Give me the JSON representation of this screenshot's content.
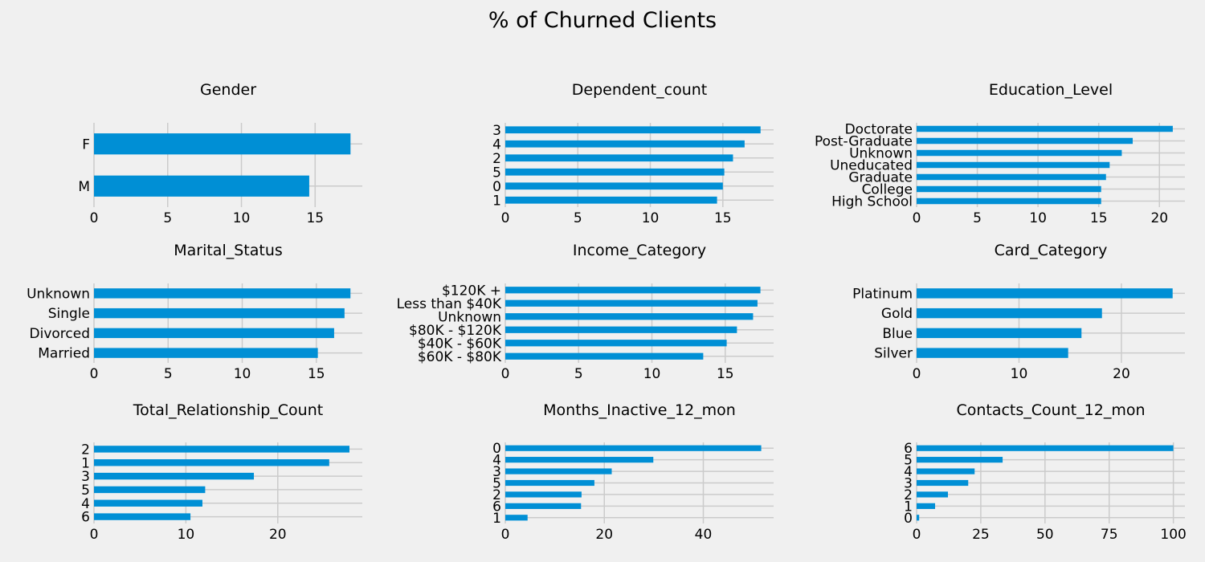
{
  "figure": {
    "title": "% of Churned Clients"
  },
  "colors": {
    "bar": "#008fd5",
    "grid": "#cbcbcb",
    "background": "#f0f0f0",
    "text": "#000000"
  },
  "chart_data": [
    {
      "type": "bar",
      "orientation": "horizontal",
      "title": "Gender",
      "categories": [
        "F",
        "M"
      ],
      "values": [
        17.4,
        14.6
      ],
      "xlim": [
        0,
        18.2
      ],
      "xticks": [
        0,
        5,
        10,
        15
      ],
      "grid": true
    },
    {
      "type": "bar",
      "orientation": "horizontal",
      "title": "Dependent_count",
      "categories": [
        "3",
        "4",
        "2",
        "5",
        "0",
        "1"
      ],
      "values": [
        17.6,
        16.5,
        15.7,
        15.1,
        15.0,
        14.6
      ],
      "xlim": [
        0,
        18.5
      ],
      "xticks": [
        0,
        5,
        10,
        15
      ],
      "grid": true
    },
    {
      "type": "bar",
      "orientation": "horizontal",
      "title": "Education_Level",
      "categories": [
        "Doctorate",
        "Post-Graduate",
        "Unknown",
        "Uneducated",
        "Graduate",
        "College",
        "High School"
      ],
      "values": [
        21.1,
        17.8,
        16.9,
        15.9,
        15.6,
        15.2,
        15.2
      ],
      "xlim": [
        0,
        22.1
      ],
      "xticks": [
        0,
        5,
        10,
        15,
        20
      ],
      "grid": true
    },
    {
      "type": "bar",
      "orientation": "horizontal",
      "title": "Marital_Status",
      "categories": [
        "Unknown",
        "Single",
        "Divorced",
        "Married"
      ],
      "values": [
        17.3,
        16.9,
        16.2,
        15.1
      ],
      "xlim": [
        0,
        18.1
      ],
      "xticks": [
        0,
        5,
        10,
        15
      ],
      "grid": true
    },
    {
      "type": "bar",
      "orientation": "horizontal",
      "title": "Income_Category",
      "categories": [
        "$120K +",
        "Less than $40K",
        "Unknown",
        "$80K - $120K",
        "$40K - $60K",
        "$60K - $80K"
      ],
      "values": [
        17.4,
        17.2,
        16.9,
        15.8,
        15.1,
        13.5
      ],
      "xlim": [
        0,
        18.3
      ],
      "xticks": [
        0,
        5,
        10,
        15
      ],
      "grid": true
    },
    {
      "type": "bar",
      "orientation": "horizontal",
      "title": "Card_Category",
      "categories": [
        "Platinum",
        "Gold",
        "Blue",
        "Silver"
      ],
      "values": [
        25.0,
        18.1,
        16.1,
        14.8
      ],
      "xlim": [
        0,
        26.2
      ],
      "xticks": [
        0,
        10,
        20
      ],
      "grid": true
    },
    {
      "type": "bar",
      "orientation": "horizontal",
      "title": "Total_Relationship_Count",
      "categories": [
        "2",
        "1",
        "3",
        "5",
        "4",
        "6"
      ],
      "values": [
        27.8,
        25.6,
        17.4,
        12.1,
        11.8,
        10.5
      ],
      "xlim": [
        0,
        29.2
      ],
      "xticks": [
        0,
        10,
        20
      ],
      "grid": true
    },
    {
      "type": "bar",
      "orientation": "horizontal",
      "title": "Months_Inactive_12_mon",
      "categories": [
        "0",
        "4",
        "3",
        "5",
        "2",
        "6",
        "1"
      ],
      "values": [
        51.7,
        29.9,
        21.5,
        18.0,
        15.4,
        15.3,
        4.5
      ],
      "xlim": [
        0,
        54.2
      ],
      "xticks": [
        0,
        20,
        40
      ],
      "grid": true
    },
    {
      "type": "bar",
      "orientation": "horizontal",
      "title": "Contacts_Count_12_mon",
      "categories": [
        "6",
        "5",
        "4",
        "3",
        "2",
        "1",
        "0"
      ],
      "values": [
        100.0,
        33.5,
        22.6,
        20.1,
        12.2,
        7.2,
        1.0
      ],
      "xlim": [
        0,
        104.5
      ],
      "xticks": [
        0,
        25,
        50,
        75,
        100
      ],
      "grid": true
    }
  ]
}
